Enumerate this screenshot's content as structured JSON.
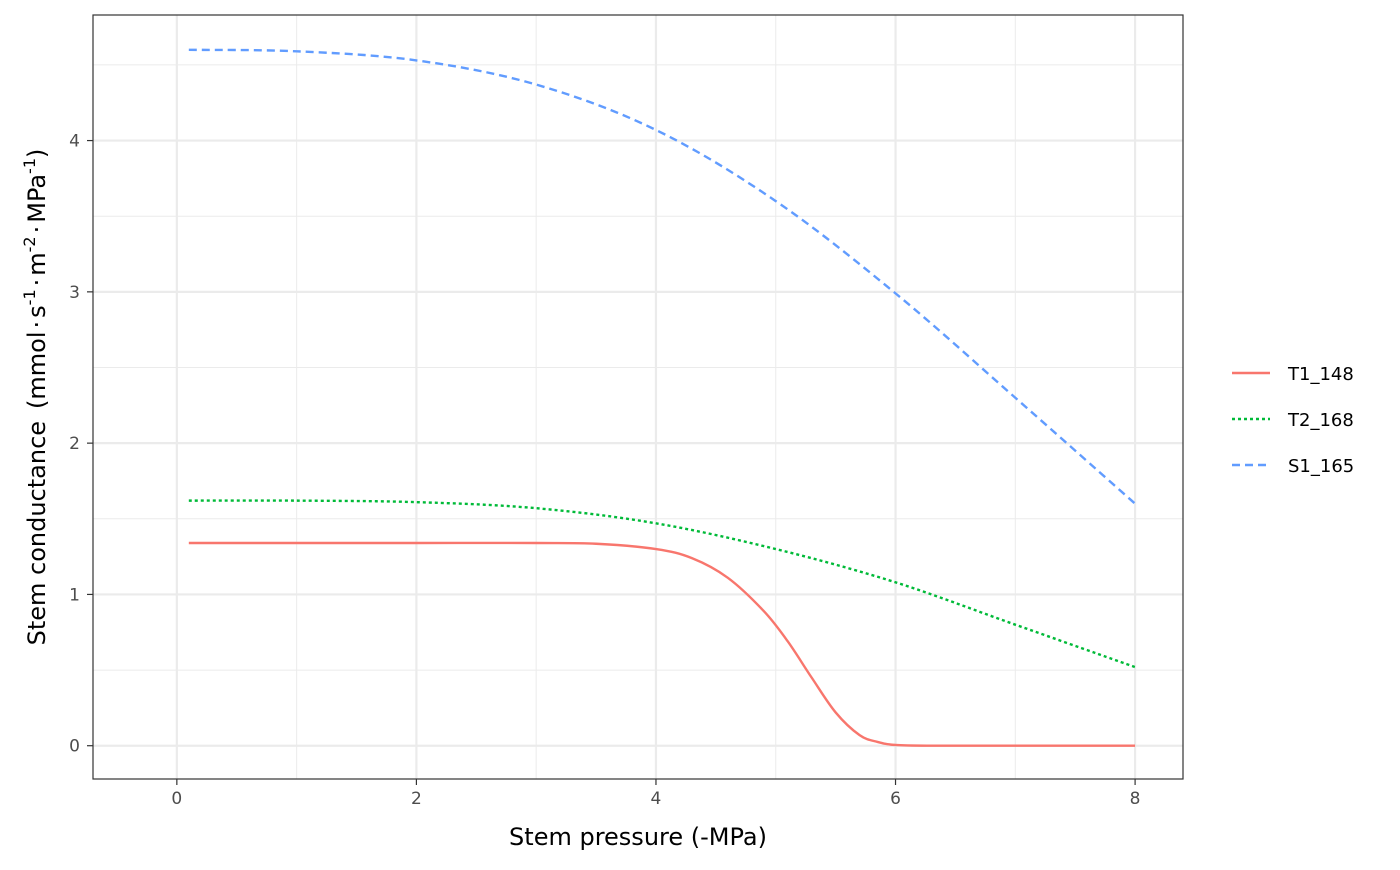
{
  "chart_data": {
    "type": "line",
    "xlabel": "Stem pressure (-MPa)",
    "ylabel": {
      "main": "Stem conductance",
      "unit_prefix": "(mmol",
      "s": "s",
      "s_exp": "-1",
      "m": "m",
      "m_exp": "-2",
      "mpa": "MPa",
      "mpa_exp": "-1",
      "unit_suffix": ")",
      "dot": "·"
    },
    "xlim": [
      -0.7,
      8.4
    ],
    "ylim": [
      -0.22,
      4.83
    ],
    "x_ticks": [
      0,
      2,
      4,
      6,
      8
    ],
    "x_tick_labels": [
      "0",
      "2",
      "4",
      "6",
      "8"
    ],
    "x_minor_ticks": [
      1,
      3,
      5,
      7
    ],
    "y_ticks": [
      0,
      1,
      2,
      3,
      4
    ],
    "y_tick_labels": [
      "0",
      "1",
      "2",
      "3",
      "4"
    ],
    "y_minor_ticks": [
      0.5,
      1.5,
      2.5,
      3.5,
      4.5
    ],
    "grid": true,
    "legend_position": "right",
    "series": [
      {
        "name": "T1_148",
        "color": "#F8766D",
        "dash": "solid",
        "x": [
          0.1,
          1,
          2,
          3,
          3.5,
          4,
          4.3,
          4.6,
          4.9,
          5.1,
          5.3,
          5.5,
          5.7,
          5.85,
          6,
          6.3,
          7,
          8
        ],
        "y": [
          1.34,
          1.34,
          1.34,
          1.34,
          1.335,
          1.3,
          1.24,
          1.11,
          0.89,
          0.69,
          0.45,
          0.22,
          0.07,
          0.025,
          0.005,
          0.0,
          0.0,
          0.0
        ]
      },
      {
        "name": "T2_168",
        "color": "#00BA38",
        "dash": "dotted",
        "x": [
          0.1,
          1,
          2,
          3,
          4,
          5,
          6,
          7,
          8
        ],
        "y": [
          1.62,
          1.62,
          1.61,
          1.57,
          1.47,
          1.3,
          1.08,
          0.8,
          0.52
        ]
      },
      {
        "name": "S1_165",
        "color": "#619CFF",
        "dash": "dashed",
        "x": [
          0.1,
          1,
          2,
          3,
          4,
          5,
          6,
          7,
          8
        ],
        "y": [
          4.6,
          4.59,
          4.53,
          4.37,
          4.07,
          3.6,
          2.99,
          2.3,
          1.6
        ]
      }
    ]
  }
}
